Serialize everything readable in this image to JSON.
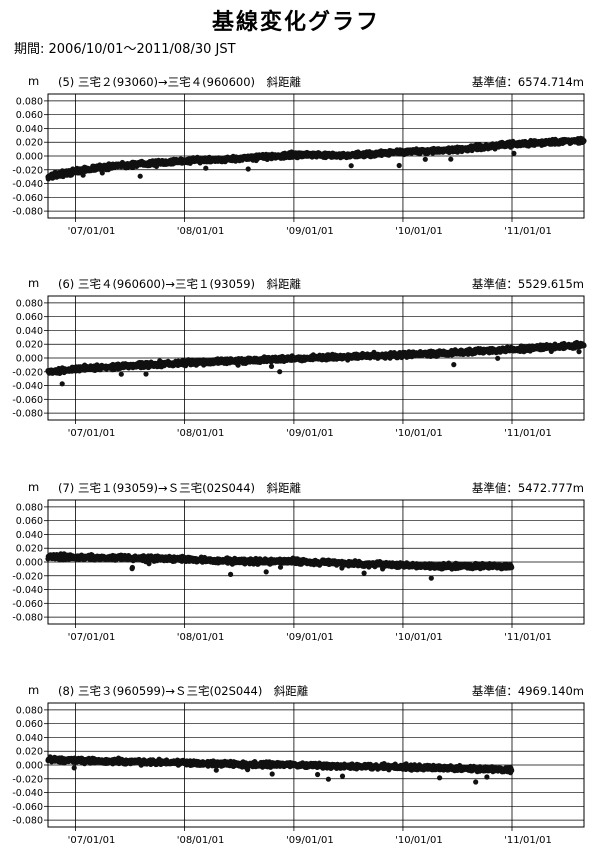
{
  "page": {
    "title": "基線変化グラフ",
    "period": "期間: 2006/10/01～2011/08/30 JST"
  },
  "chart_data": [
    {
      "type": "scatter",
      "unit": "m",
      "label": "(5) 三宅２(93060)→三宅４(960600)　斜距離",
      "reference": "基準値：6574.714m",
      "ylim": [
        -0.09,
        0.09
      ],
      "yticks": [
        "0.080",
        "0.060",
        "0.040",
        "0.020",
        "0.000",
        "-0.020",
        "-0.040",
        "-0.060",
        "-0.080"
      ],
      "xticks": [
        "'07/01/01",
        "'08/01/01",
        "'09/01/01",
        "'10/01/01",
        "'11/01/01"
      ],
      "xlim": [
        "2006-10-01",
        "2011-08-30"
      ],
      "grid": true,
      "series": [
        {
          "x": [
            "2006-10-01",
            "2007-01-01",
            "2007-04-01",
            "2007-07-01",
            "2008-01-01",
            "2008-07-01",
            "2009-01-01",
            "2009-07-01",
            "2010-01-01",
            "2010-07-01",
            "2011-01-01",
            "2011-08-30"
          ],
          "values": [
            -0.03,
            -0.022,
            -0.016,
            -0.013,
            -0.007,
            -0.004,
            0.002,
            0.001,
            0.006,
            0.009,
            0.017,
            0.023
          ]
        }
      ]
    },
    {
      "type": "scatter",
      "unit": "m",
      "label": "(6) 三宅４(960600)→三宅１(93059)　斜距離",
      "reference": "基準値：5529.615m",
      "ylim": [
        -0.09,
        0.09
      ],
      "yticks": [
        "0.080",
        "0.060",
        "0.040",
        "0.020",
        "0.000",
        "-0.020",
        "-0.040",
        "-0.060",
        "-0.080"
      ],
      "xticks": [
        "'07/01/01",
        "'08/01/01",
        "'09/01/01",
        "'10/01/01",
        "'11/01/01"
      ],
      "xlim": [
        "2006-10-01",
        "2011-08-30"
      ],
      "grid": true,
      "series": [
        {
          "x": [
            "2006-10-01",
            "2007-01-01",
            "2007-07-01",
            "2008-01-01",
            "2008-07-01",
            "2009-01-01",
            "2009-07-01",
            "2010-01-01",
            "2010-07-01",
            "2011-01-01",
            "2011-08-30"
          ],
          "values": [
            -0.02,
            -0.016,
            -0.011,
            -0.007,
            -0.004,
            -0.001,
            0.002,
            0.005,
            0.008,
            0.012,
            0.019
          ]
        }
      ]
    },
    {
      "type": "scatter",
      "unit": "m",
      "label": "(7) 三宅１(93059)→Ｓ三宅(02S044)　斜距離",
      "reference": "基準値：5472.777m",
      "ylim": [
        -0.09,
        0.09
      ],
      "yticks": [
        "0.080",
        "0.060",
        "0.040",
        "0.020",
        "0.000",
        "-0.020",
        "-0.040",
        "-0.060",
        "-0.080"
      ],
      "xticks": [
        "'07/01/01",
        "'08/01/01",
        "'09/01/01",
        "'10/01/01",
        "'11/01/01"
      ],
      "xlim": [
        "2006-10-01",
        "2011-08-30"
      ],
      "grid": true,
      "series": [
        {
          "x": [
            "2006-10-01",
            "2007-01-01",
            "2007-07-01",
            "2008-01-01",
            "2008-07-01",
            "2009-01-01",
            "2009-07-01",
            "2010-01-01",
            "2010-07-01",
            "2010-12-31"
          ],
          "values": [
            0.008,
            0.007,
            0.006,
            0.004,
            0.001,
            0.001,
            -0.002,
            -0.005,
            -0.006,
            -0.006
          ]
        }
      ]
    },
    {
      "type": "scatter",
      "unit": "m",
      "label": "(8) 三宅３(960599)→Ｓ三宅(02S044)　斜距離",
      "reference": "基準値：4969.140m",
      "ylim": [
        -0.09,
        0.09
      ],
      "yticks": [
        "0.080",
        "0.060",
        "0.040",
        "0.020",
        "0.000",
        "-0.020",
        "-0.040",
        "-0.060",
        "-0.080"
      ],
      "xticks": [
        "'07/01/01",
        "'08/01/01",
        "'09/01/01",
        "'10/01/01",
        "'11/01/01"
      ],
      "xlim": [
        "2006-10-01",
        "2011-08-30"
      ],
      "grid": true,
      "series": [
        {
          "x": [
            "2006-10-01",
            "2007-01-01",
            "2007-07-01",
            "2008-01-01",
            "2008-07-01",
            "2009-01-01",
            "2009-07-01",
            "2010-01-01",
            "2010-07-01",
            "2010-12-31"
          ],
          "values": [
            0.008,
            0.007,
            0.005,
            0.003,
            0.001,
            0.0,
            -0.002,
            -0.003,
            -0.005,
            -0.007
          ]
        }
      ]
    }
  ]
}
